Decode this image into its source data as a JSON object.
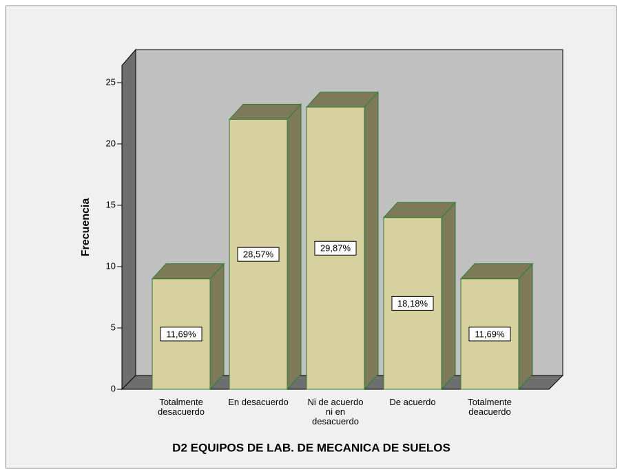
{
  "chart_data": {
    "type": "bar3d",
    "title": "D2 EQUIPOS DE LAB. DE MECANICA DE SUELOS",
    "ylabel": "Frecuencia",
    "categories": [
      "Totalmente\ndesacuerdo",
      "En desacuerdo",
      "Ni de acuerdo\nni en\ndesacuerdo",
      "De acuerdo",
      "Totalmente\ndeacuerdo"
    ],
    "values": [
      9,
      22,
      23,
      14,
      9
    ],
    "value_labels": [
      "11,69%",
      "28,57%",
      "29,87%",
      "18,18%",
      "11,69%"
    ],
    "color": "#d6d19e",
    "ylim": [
      0,
      26.4
    ],
    "yticks": [
      0,
      5,
      10,
      15,
      20,
      25
    ]
  }
}
